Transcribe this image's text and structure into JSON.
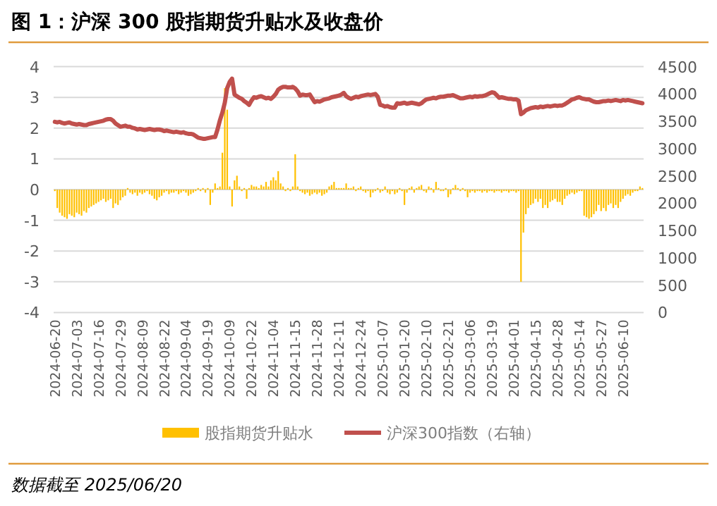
{
  "chart_data": {
    "type": "bar",
    "title": "图 1：沪深 300 股指期货升贴水及收盘价",
    "categories": [
      "2024-06-20",
      null,
      null,
      null,
      null,
      null,
      null,
      null,
      null,
      "2024-07-03",
      null,
      null,
      null,
      null,
      null,
      null,
      null,
      null,
      "2024-07-16",
      null,
      null,
      null,
      null,
      null,
      null,
      null,
      null,
      "2024-07-29",
      null,
      null,
      null,
      null,
      null,
      null,
      null,
      null,
      "2024-08-09",
      null,
      null,
      null,
      null,
      null,
      null,
      null,
      null,
      "2024-08-22",
      null,
      null,
      null,
      null,
      null,
      null,
      null,
      null,
      "2024-09-04",
      null,
      null,
      null,
      null,
      null,
      null,
      null,
      null,
      "2024-09-19",
      null,
      null,
      null,
      null,
      null,
      null,
      null,
      null,
      "2024-10-09",
      null,
      null,
      null,
      null,
      null,
      null,
      null,
      null,
      "2024-10-22",
      null,
      null,
      null,
      null,
      null,
      null,
      null,
      null,
      "2024-11-04",
      null,
      null,
      null,
      null,
      null,
      null,
      null,
      null,
      "2024-11-15",
      null,
      null,
      null,
      null,
      null,
      null,
      null,
      null,
      "2024-11-28",
      null,
      null,
      null,
      null,
      null,
      null,
      null,
      null,
      "2024-12-11",
      null,
      null,
      null,
      null,
      null,
      null,
      null,
      null,
      "2024-12-24",
      null,
      null,
      null,
      null,
      null,
      null,
      null,
      null,
      "2025-01-07",
      null,
      null,
      null,
      null,
      null,
      null,
      null,
      null,
      "2025-01-20",
      null,
      null,
      null,
      null,
      null,
      null,
      null,
      null,
      "2025-02-10",
      null,
      null,
      null,
      null,
      null,
      null,
      null,
      null,
      "2025-02-21",
      null,
      null,
      null,
      null,
      null,
      null,
      null,
      null,
      "2025-03-06",
      null,
      null,
      null,
      null,
      null,
      null,
      null,
      null,
      "2025-03-19",
      null,
      null,
      null,
      null,
      null,
      null,
      null,
      null,
      "2025-04-01",
      null,
      null,
      null,
      null,
      null,
      null,
      null,
      null,
      "2025-04-15",
      null,
      null,
      null,
      null,
      null,
      null,
      null,
      null,
      "2025-04-28",
      null,
      null,
      null,
      null,
      null,
      null,
      null,
      null,
      "2025-05-14",
      null,
      null,
      null,
      null,
      null,
      null,
      null,
      null,
      "2025-05-27",
      null,
      null,
      null,
      null,
      null,
      null,
      null,
      null,
      "2025-06-10",
      null,
      null,
      null,
      null,
      null,
      null,
      null,
      null
    ],
    "series": [
      {
        "name": "股指期货升贴水",
        "color": "#ffc000",
        "values": [
          -0.05,
          -0.6,
          -0.75,
          -0.85,
          -0.9,
          -0.95,
          -0.8,
          -0.85,
          -0.9,
          -0.75,
          -0.8,
          -0.85,
          -0.7,
          -0.75,
          -0.6,
          -0.55,
          -0.5,
          -0.45,
          -0.4,
          -0.35,
          -0.3,
          -0.4,
          -0.35,
          -0.3,
          -0.6,
          -0.45,
          -0.5,
          -0.35,
          -0.25,
          -0.2,
          0.05,
          -0.1,
          -0.15,
          -0.1,
          -0.2,
          -0.1,
          -0.15,
          -0.1,
          -0.05,
          -0.15,
          -0.2,
          -0.3,
          -0.35,
          -0.25,
          -0.2,
          -0.1,
          -0.05,
          -0.15,
          -0.1,
          -0.1,
          -0.05,
          -0.15,
          -0.1,
          -0.05,
          -0.1,
          -0.2,
          -0.15,
          -0.1,
          -0.05,
          0.05,
          -0.05,
          0.05,
          -0.1,
          0.05,
          -0.5,
          -0.1,
          0.2,
          0.05,
          0.1,
          1.2,
          3.3,
          2.6,
          0.1,
          -0.55,
          0.3,
          0.45,
          0.1,
          -0.05,
          0.05,
          -0.3,
          0.05,
          0.15,
          0.1,
          0.1,
          0.05,
          0.15,
          0.1,
          0.25,
          0.1,
          0.3,
          0.4,
          0.3,
          0.6,
          0.2,
          0.1,
          -0.05,
          0.05,
          -0.05,
          0.1,
          1.15,
          0.1,
          -0.05,
          -0.1,
          -0.15,
          -0.1,
          -0.2,
          -0.15,
          -0.1,
          -0.15,
          -0.1,
          -0.2,
          -0.15,
          -0.1,
          0.1,
          0.15,
          0.25,
          0.05,
          0.05,
          0.05,
          0.05,
          0.2,
          0.05,
          0.05,
          0.1,
          -0.05,
          0.05,
          0.1,
          -0.05,
          -0.1,
          -0.05,
          -0.25,
          -0.1,
          -0.05,
          0.05,
          -0.1,
          -0.05,
          0.1,
          -0.1,
          -0.15,
          -0.05,
          -0.15,
          -0.1,
          0.05,
          -0.05,
          -0.5,
          -0.1,
          0.05,
          0.1,
          -0.1,
          0.05,
          0.1,
          0.15,
          -0.05,
          -0.1,
          0.1,
          0.05,
          -0.1,
          0.25,
          0.05,
          -0.05,
          -0.05,
          0.05,
          -0.25,
          -0.15,
          0.05,
          0.15,
          0.05,
          -0.05,
          0.05,
          -0.05,
          -0.25,
          -0.1,
          -0.05,
          -0.1,
          -0.05,
          -0.05,
          -0.1,
          -0.05,
          -0.1,
          -0.05,
          -0.05,
          -0.1,
          -0.05,
          -0.05,
          -0.1,
          -0.05,
          -0.05,
          -0.1,
          -0.05,
          -0.05,
          -0.1,
          -0.05,
          -3.0,
          -1.4,
          -0.8,
          -0.6,
          -0.5,
          -0.45,
          -0.3,
          -0.4,
          -0.3,
          -0.6,
          -0.5,
          -0.6,
          -0.4,
          -0.35,
          -0.3,
          -0.4,
          -0.4,
          -0.5,
          -0.3,
          -0.2,
          -0.15,
          -0.1,
          -0.15,
          -0.1,
          -0.05,
          -0.05,
          -0.85,
          -0.9,
          -0.95,
          -0.9,
          -0.8,
          -0.7,
          -0.5,
          -0.7,
          -0.6,
          -0.7,
          -0.5,
          -0.45,
          -0.6,
          -0.5,
          -0.6,
          -0.4,
          -0.3,
          -0.2,
          -0.15,
          -0.2,
          -0.1,
          -0.05,
          -0.05,
          0.1,
          0.05
        ]
      },
      {
        "name": "沪深300指数（右轴）",
        "type": "line",
        "axis": "y2",
        "color": "#c0504d",
        "values": [
          3490,
          3480,
          3490,
          3470,
          3460,
          3470,
          3480,
          3460,
          3450,
          3440,
          3450,
          3440,
          3430,
          3430,
          3450,
          3460,
          3470,
          3480,
          3490,
          3500,
          3510,
          3530,
          3540,
          3540,
          3510,
          3460,
          3430,
          3400,
          3410,
          3420,
          3400,
          3400,
          3380,
          3370,
          3350,
          3360,
          3350,
          3340,
          3350,
          3360,
          3350,
          3340,
          3350,
          3350,
          3340,
          3320,
          3330,
          3320,
          3310,
          3300,
          3310,
          3300,
          3290,
          3300,
          3280,
          3270,
          3270,
          3260,
          3230,
          3200,
          3190,
          3180,
          3180,
          3190,
          3200,
          3210,
          3210,
          3350,
          3520,
          3660,
          3840,
          4110,
          4220,
          4280,
          3990,
          3960,
          3930,
          3910,
          3870,
          3840,
          3800,
          3880,
          3940,
          3930,
          3950,
          3960,
          3940,
          3920,
          3930,
          3910,
          3950,
          4000,
          4080,
          4110,
          4130,
          4130,
          4120,
          4120,
          4130,
          4100,
          4050,
          3970,
          3990,
          3980,
          3980,
          3990,
          3920,
          3850,
          3870,
          3860,
          3880,
          3900,
          3910,
          3920,
          3940,
          3950,
          3960,
          3970,
          3990,
          4020,
          3960,
          3930,
          3910,
          3930,
          3950,
          3940,
          3960,
          3970,
          3980,
          3990,
          3980,
          3990,
          4000,
          3950,
          3800,
          3790,
          3770,
          3780,
          3760,
          3750,
          3750,
          3830,
          3820,
          3830,
          3840,
          3820,
          3830,
          3840,
          3830,
          3820,
          3810,
          3830,
          3870,
          3900,
          3910,
          3920,
          3930,
          3920,
          3940,
          3950,
          3950,
          3960,
          3970,
          3970,
          3980,
          3960,
          3940,
          3920,
          3920,
          3930,
          3940,
          3950,
          3940,
          3960,
          3950,
          3960,
          3960,
          3970,
          3990,
          4010,
          4030,
          4020,
          3980,
          3930,
          3940,
          3930,
          3920,
          3910,
          3910,
          3900,
          3900,
          3880,
          3630,
          3660,
          3700,
          3720,
          3740,
          3750,
          3760,
          3750,
          3770,
          3760,
          3770,
          3780,
          3770,
          3780,
          3790,
          3780,
          3790,
          3790,
          3810,
          3840,
          3870,
          3900,
          3910,
          3930,
          3940,
          3920,
          3910,
          3900,
          3900,
          3880,
          3860,
          3850,
          3850,
          3860,
          3870,
          3870,
          3880,
          3870,
          3880,
          3890,
          3880,
          3870,
          3890,
          3880,
          3890,
          3880,
          3870,
          3860,
          3850,
          3840,
          3830
        ]
      }
    ],
    "ylim": [
      -4,
      4
    ],
    "yticks": [
      -4,
      -3,
      -2,
      -1,
      0,
      1,
      2,
      3,
      4
    ],
    "y2lim": [
      0,
      4500
    ],
    "y2ticks": [
      0,
      500,
      1000,
      1500,
      2000,
      2500,
      3000,
      3500,
      4000,
      4500
    ],
    "grid": "y",
    "legend": "bottom",
    "annotations": [
      "数据截至 2025/06/20"
    ]
  }
}
